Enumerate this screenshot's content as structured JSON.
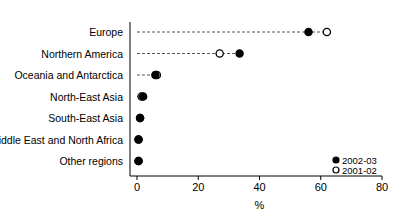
{
  "chart_data": {
    "type": "dot",
    "orientation": "horizontal",
    "x_label": "%",
    "categories": [
      "Europe",
      "Northern America",
      "Oceania and Antarctica",
      "North-East Asia",
      "South-East Asia",
      "Middle East and North Africa",
      "Other regions"
    ],
    "series": [
      {
        "name": "2002-03",
        "color": "#000000",
        "marker": "filled",
        "values": [
          56,
          33.5,
          6,
          2,
          1,
          0.5,
          0.5
        ]
      },
      {
        "name": "2001-02",
        "color": "#000000",
        "marker": "open",
        "values": [
          62,
          27,
          6.5,
          1.5,
          1,
          0.5,
          0.5
        ]
      }
    ],
    "xlim": [
      0,
      80
    ],
    "xticks": [
      0,
      20,
      40,
      60,
      80
    ],
    "legend": "lower right",
    "grid": false
  }
}
